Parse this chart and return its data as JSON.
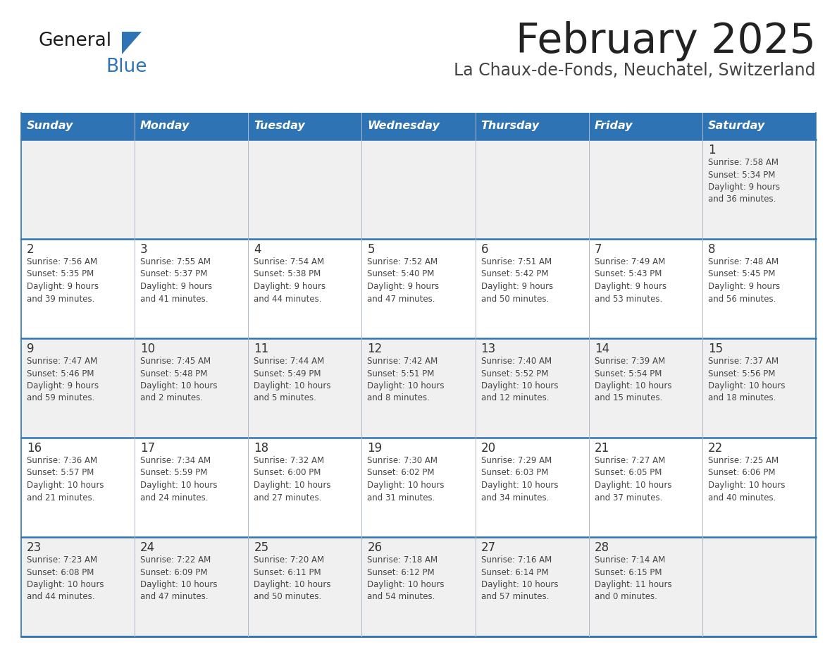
{
  "title": "February 2025",
  "subtitle": "La Chaux-de-Fonds, Neuchatel, Switzerland",
  "days_of_week": [
    "Sunday",
    "Monday",
    "Tuesday",
    "Wednesday",
    "Thursday",
    "Friday",
    "Saturday"
  ],
  "header_bg": "#2E74B5",
  "header_text": "#FFFFFF",
  "cell_bg_white": "#FFFFFF",
  "cell_bg_gray": "#F0F0F0",
  "day_num_color": "#333333",
  "info_text_color": "#444444",
  "separator_color": "#2E74B5",
  "title_color": "#222222",
  "subtitle_color": "#444444",
  "logo_black": "#1a1a1a",
  "logo_blue": "#2E74B5",
  "calendar_data": [
    [
      {
        "day": null,
        "info": null
      },
      {
        "day": null,
        "info": null
      },
      {
        "day": null,
        "info": null
      },
      {
        "day": null,
        "info": null
      },
      {
        "day": null,
        "info": null
      },
      {
        "day": null,
        "info": null
      },
      {
        "day": 1,
        "info": "Sunrise: 7:58 AM\nSunset: 5:34 PM\nDaylight: 9 hours\nand 36 minutes."
      }
    ],
    [
      {
        "day": 2,
        "info": "Sunrise: 7:56 AM\nSunset: 5:35 PM\nDaylight: 9 hours\nand 39 minutes."
      },
      {
        "day": 3,
        "info": "Sunrise: 7:55 AM\nSunset: 5:37 PM\nDaylight: 9 hours\nand 41 minutes."
      },
      {
        "day": 4,
        "info": "Sunrise: 7:54 AM\nSunset: 5:38 PM\nDaylight: 9 hours\nand 44 minutes."
      },
      {
        "day": 5,
        "info": "Sunrise: 7:52 AM\nSunset: 5:40 PM\nDaylight: 9 hours\nand 47 minutes."
      },
      {
        "day": 6,
        "info": "Sunrise: 7:51 AM\nSunset: 5:42 PM\nDaylight: 9 hours\nand 50 minutes."
      },
      {
        "day": 7,
        "info": "Sunrise: 7:49 AM\nSunset: 5:43 PM\nDaylight: 9 hours\nand 53 minutes."
      },
      {
        "day": 8,
        "info": "Sunrise: 7:48 AM\nSunset: 5:45 PM\nDaylight: 9 hours\nand 56 minutes."
      }
    ],
    [
      {
        "day": 9,
        "info": "Sunrise: 7:47 AM\nSunset: 5:46 PM\nDaylight: 9 hours\nand 59 minutes."
      },
      {
        "day": 10,
        "info": "Sunrise: 7:45 AM\nSunset: 5:48 PM\nDaylight: 10 hours\nand 2 minutes."
      },
      {
        "day": 11,
        "info": "Sunrise: 7:44 AM\nSunset: 5:49 PM\nDaylight: 10 hours\nand 5 minutes."
      },
      {
        "day": 12,
        "info": "Sunrise: 7:42 AM\nSunset: 5:51 PM\nDaylight: 10 hours\nand 8 minutes."
      },
      {
        "day": 13,
        "info": "Sunrise: 7:40 AM\nSunset: 5:52 PM\nDaylight: 10 hours\nand 12 minutes."
      },
      {
        "day": 14,
        "info": "Sunrise: 7:39 AM\nSunset: 5:54 PM\nDaylight: 10 hours\nand 15 minutes."
      },
      {
        "day": 15,
        "info": "Sunrise: 7:37 AM\nSunset: 5:56 PM\nDaylight: 10 hours\nand 18 minutes."
      }
    ],
    [
      {
        "day": 16,
        "info": "Sunrise: 7:36 AM\nSunset: 5:57 PM\nDaylight: 10 hours\nand 21 minutes."
      },
      {
        "day": 17,
        "info": "Sunrise: 7:34 AM\nSunset: 5:59 PM\nDaylight: 10 hours\nand 24 minutes."
      },
      {
        "day": 18,
        "info": "Sunrise: 7:32 AM\nSunset: 6:00 PM\nDaylight: 10 hours\nand 27 minutes."
      },
      {
        "day": 19,
        "info": "Sunrise: 7:30 AM\nSunset: 6:02 PM\nDaylight: 10 hours\nand 31 minutes."
      },
      {
        "day": 20,
        "info": "Sunrise: 7:29 AM\nSunset: 6:03 PM\nDaylight: 10 hours\nand 34 minutes."
      },
      {
        "day": 21,
        "info": "Sunrise: 7:27 AM\nSunset: 6:05 PM\nDaylight: 10 hours\nand 37 minutes."
      },
      {
        "day": 22,
        "info": "Sunrise: 7:25 AM\nSunset: 6:06 PM\nDaylight: 10 hours\nand 40 minutes."
      }
    ],
    [
      {
        "day": 23,
        "info": "Sunrise: 7:23 AM\nSunset: 6:08 PM\nDaylight: 10 hours\nand 44 minutes."
      },
      {
        "day": 24,
        "info": "Sunrise: 7:22 AM\nSunset: 6:09 PM\nDaylight: 10 hours\nand 47 minutes."
      },
      {
        "day": 25,
        "info": "Sunrise: 7:20 AM\nSunset: 6:11 PM\nDaylight: 10 hours\nand 50 minutes."
      },
      {
        "day": 26,
        "info": "Sunrise: 7:18 AM\nSunset: 6:12 PM\nDaylight: 10 hours\nand 54 minutes."
      },
      {
        "day": 27,
        "info": "Sunrise: 7:16 AM\nSunset: 6:14 PM\nDaylight: 10 hours\nand 57 minutes."
      },
      {
        "day": 28,
        "info": "Sunrise: 7:14 AM\nSunset: 6:15 PM\nDaylight: 11 hours\nand 0 minutes."
      },
      {
        "day": null,
        "info": null
      }
    ]
  ]
}
